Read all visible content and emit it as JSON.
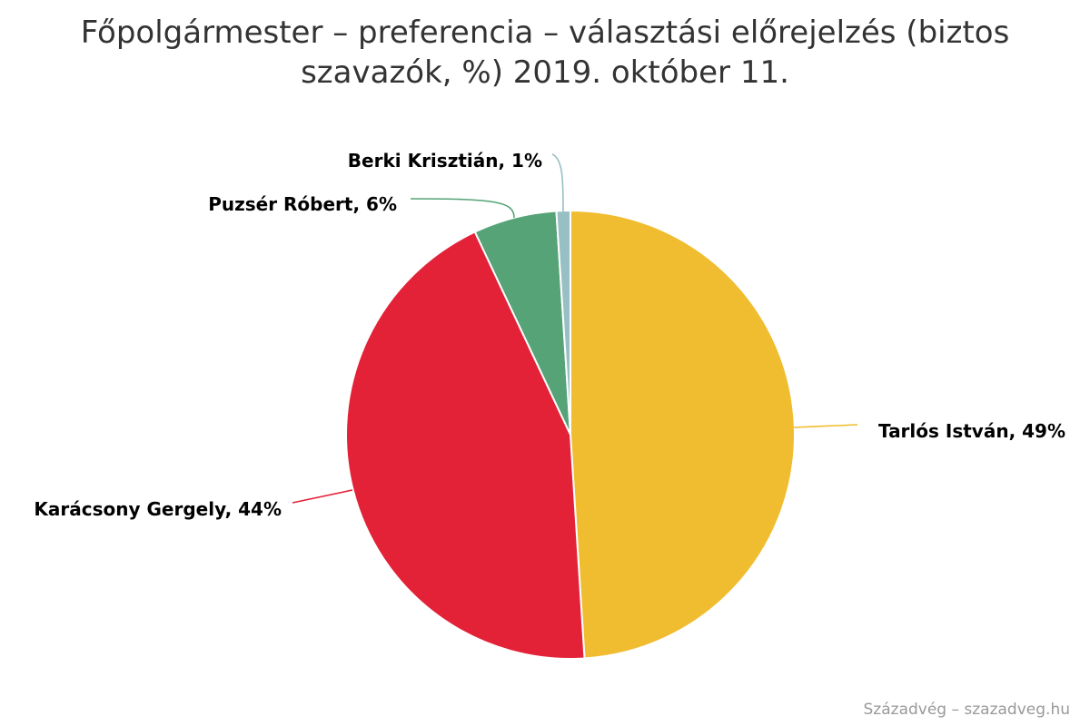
{
  "chart_data": {
    "type": "pie",
    "title": "Főpolgármester – preferencia – választási előrejelzés (biztos szavazók, %) 2019. október 11.",
    "slices": [
      {
        "name": "Tarlós István",
        "value": 49,
        "label": "Tarlós István, 49%",
        "color": "#f0bd30"
      },
      {
        "name": "Karácsony Gergely",
        "value": 44,
        "label": "Karácsony Gergely, 44%",
        "color": "#e32238"
      },
      {
        "name": "Puzsér Róbert",
        "value": 6,
        "label": "Puzsér Róbert, 6%",
        "color": "#55a377"
      },
      {
        "name": "Berki Krisztián",
        "value": 1,
        "label": "Berki Krisztián, 1%",
        "color": "#98bfc4"
      }
    ],
    "legend": false
  },
  "credits": "Századvég – szazadveg.hu"
}
